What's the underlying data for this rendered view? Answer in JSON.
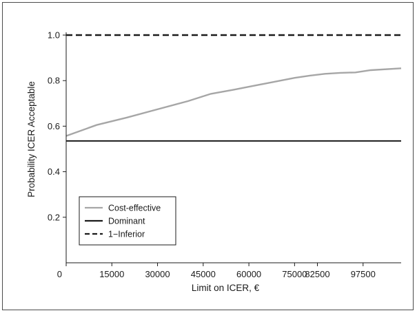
{
  "chart_data": {
    "type": "line",
    "title": "",
    "xlabel": "Limit on ICER, €",
    "ylabel": "Probability ICER Acceptable",
    "xlim": [
      0,
      110000
    ],
    "ylim": [
      0,
      1.0
    ],
    "x_tick_values": [
      0,
      15000,
      30000,
      45000,
      60000,
      75000,
      82500,
      97500
    ],
    "x_tick_labels": [
      "0",
      "15000",
      "30000",
      "45000",
      "60000",
      "75000",
      "82500",
      "97500"
    ],
    "y_tick_values": [
      0.2,
      0.4,
      0.6,
      0.8,
      1.0
    ],
    "y_tick_labels": [
      "0.2",
      "0.4",
      "0.6",
      "0.8",
      "1.0"
    ],
    "grid": false,
    "legend_position": "bottom-left",
    "series": [
      {
        "name": "Cost-effective",
        "color": "#a6a6a6",
        "dash": "solid",
        "x": [
          0,
          10000,
          20000,
          30000,
          40000,
          47500,
          55000,
          65000,
          75000,
          80000,
          85000,
          90000,
          95000,
          100000,
          110000
        ],
        "y": [
          0.557,
          0.605,
          0.638,
          0.674,
          0.71,
          0.742,
          0.76,
          0.786,
          0.812,
          0.822,
          0.83,
          0.834,
          0.836,
          0.846,
          0.854
        ]
      },
      {
        "name": "Dominant",
        "color": "#1a1a1a",
        "dash": "solid",
        "x": [
          0,
          110000
        ],
        "y": [
          0.535,
          0.535
        ]
      },
      {
        "name": "1−Inferior",
        "color": "#1a1a1a",
        "dash": "dashed",
        "x": [
          0,
          110000
        ],
        "y": [
          1.0,
          1.0
        ]
      }
    ]
  }
}
